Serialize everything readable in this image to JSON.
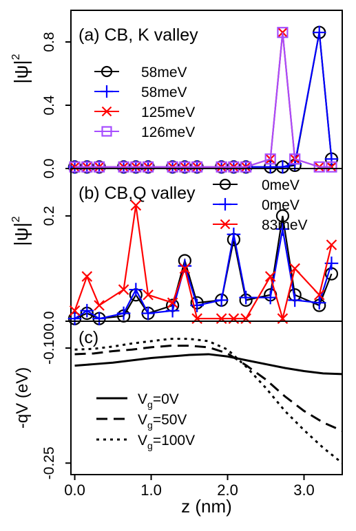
{
  "figure": {
    "xlabel": "z (nm)",
    "x_ticks": [
      "0.0",
      "1.0",
      "2.0",
      "3.0"
    ],
    "x_tick_values": [
      0,
      1,
      2,
      3
    ],
    "xlim": [
      -0.05,
      3.5
    ]
  },
  "chart_data": [
    {
      "type": "line",
      "panel": "a",
      "title": "(a) CB, K valley",
      "ylabel": "|ψ|²",
      "ylabel_base": "|ψ|",
      "ylabel_sup": "2",
      "ylim": [
        0,
        1.0
      ],
      "y_ticks": [
        "0.0",
        "0.4",
        "0.8"
      ],
      "y_tick_values": [
        0.0,
        0.4,
        0.8
      ],
      "x": [
        0.0,
        0.16,
        0.32,
        0.64,
        0.8,
        0.96,
        1.28,
        1.44,
        1.6,
        1.92,
        2.08,
        2.24,
        2.56,
        2.72,
        2.88,
        3.2,
        3.36
      ],
      "series": [
        {
          "name": "58meV",
          "color": "#000000",
          "marker": "circle",
          "values": [
            0.01,
            0.01,
            0.01,
            0.01,
            0.01,
            0.01,
            0.01,
            0.01,
            0.01,
            0.01,
            0.01,
            0.01,
            0.01,
            0.01,
            0.02,
            0.86,
            0.06
          ]
        },
        {
          "name": "58meV",
          "color": "#0000ff",
          "marker": "plus",
          "values": [
            0.01,
            0.01,
            0.01,
            0.01,
            0.01,
            0.01,
            0.01,
            0.01,
            0.01,
            0.01,
            0.01,
            0.01,
            0.01,
            0.01,
            0.03,
            0.86,
            0.06
          ]
        },
        {
          "name": "125meV",
          "color": "#ff0000",
          "marker": "x",
          "values": [
            0.01,
            0.01,
            0.01,
            0.01,
            0.01,
            0.01,
            0.01,
            0.01,
            0.01,
            0.01,
            0.01,
            0.01,
            0.06,
            0.86,
            0.06,
            0.01,
            0.01
          ]
        },
        {
          "name": "126meV",
          "color": "#a64dff",
          "marker": "square",
          "values": [
            0.01,
            0.01,
            0.01,
            0.01,
            0.01,
            0.01,
            0.01,
            0.01,
            0.01,
            0.01,
            0.01,
            0.01,
            0.06,
            0.86,
            0.06,
            0.01,
            0.01
          ]
        }
      ]
    },
    {
      "type": "line",
      "panel": "b",
      "title": "(b) CB,Q valley",
      "ylabel": "|ψ|²",
      "ylabel_base": "|ψ|",
      "ylabel_sup": "2",
      "ylim": [
        0,
        0.29
      ],
      "y_ticks": [
        "0.0",
        "0.2"
      ],
      "y_tick_values": [
        0.0,
        0.2
      ],
      "x": [
        0.0,
        0.16,
        0.32,
        0.64,
        0.8,
        0.96,
        1.28,
        1.44,
        1.6,
        1.92,
        2.08,
        2.24,
        2.56,
        2.72,
        2.88,
        3.2,
        3.36,
        3.52
      ],
      "series": [
        {
          "name": "0meV",
          "color": "#000000",
          "marker": "circle",
          "values": [
            0.005,
            0.015,
            0.005,
            0.01,
            0.05,
            0.015,
            0.03,
            0.115,
            0.035,
            0.04,
            0.155,
            0.04,
            0.05,
            0.2,
            0.05,
            0.03,
            0.09,
            0.02
          ]
        },
        {
          "name": "0meV",
          "color": "#0000ff",
          "marker": "plus",
          "values": [
            0.005,
            0.02,
            0.005,
            0.015,
            0.06,
            0.015,
            0.02,
            0.105,
            0.03,
            0.04,
            0.165,
            0.045,
            0.045,
            0.175,
            0.04,
            0.035,
            0.11,
            0.02
          ]
        },
        {
          "name": "83meV",
          "color": "#ff0000",
          "marker": "x",
          "values": [
            0.02,
            0.085,
            0.03,
            0.06,
            0.22,
            0.05,
            0.035,
            0.1,
            0.005,
            0.005,
            0.005,
            0.005,
            0.085,
            0.005,
            0.1,
            0.05,
            0.145,
            0.015
          ]
        }
      ]
    },
    {
      "type": "line",
      "panel": "c",
      "title": "(c)",
      "ylabel": "-qV (eV)",
      "ylim": [
        -0.265,
        -0.065
      ],
      "y_ticks": [
        "-0.10",
        "-0.25"
      ],
      "y_tick_values": [
        -0.1,
        -0.25
      ],
      "x": [
        0.0,
        0.25,
        0.5,
        0.75,
        1.0,
        1.25,
        1.5,
        1.75,
        2.0,
        2.25,
        2.5,
        2.75,
        3.0,
        3.25,
        3.5
      ],
      "series": [
        {
          "name": "V",
          "subscript": "g",
          "suffix": "=0V",
          "dash": "solid",
          "color": "#000000",
          "values": [
            -0.123,
            -0.121,
            -0.119,
            -0.116,
            -0.113,
            -0.111,
            -0.109,
            -0.108,
            -0.111,
            -0.116,
            -0.121,
            -0.126,
            -0.13,
            -0.133,
            -0.134
          ]
        },
        {
          "name": "V",
          "subscript": "g",
          "suffix": "=50V",
          "dash": "dashed",
          "color": "#000000",
          "values": [
            -0.108,
            -0.107,
            -0.104,
            -0.102,
            -0.099,
            -0.097,
            -0.097,
            -0.099,
            -0.107,
            -0.123,
            -0.141,
            -0.163,
            -0.182,
            -0.197,
            -0.208
          ]
        },
        {
          "name": "V",
          "subscript": "g",
          "suffix": "=100V",
          "dash": "dotted",
          "color": "#000000",
          "values": [
            -0.102,
            -0.101,
            -0.098,
            -0.094,
            -0.091,
            -0.088,
            -0.088,
            -0.091,
            -0.102,
            -0.125,
            -0.152,
            -0.182,
            -0.207,
            -0.23,
            -0.25
          ]
        }
      ]
    }
  ]
}
